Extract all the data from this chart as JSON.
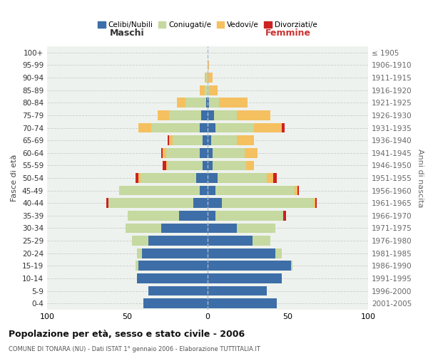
{
  "age_groups": [
    "0-4",
    "5-9",
    "10-14",
    "15-19",
    "20-24",
    "25-29",
    "30-34",
    "35-39",
    "40-44",
    "45-49",
    "50-54",
    "55-59",
    "60-64",
    "65-69",
    "70-74",
    "75-79",
    "80-84",
    "85-89",
    "90-94",
    "95-99",
    "100+"
  ],
  "birth_years": [
    "2001-2005",
    "1996-2000",
    "1991-1995",
    "1986-1990",
    "1981-1985",
    "1976-1980",
    "1971-1975",
    "1966-1970",
    "1961-1965",
    "1956-1960",
    "1951-1955",
    "1946-1950",
    "1941-1945",
    "1936-1940",
    "1931-1935",
    "1926-1930",
    "1921-1925",
    "1916-1920",
    "1911-1915",
    "1906-1910",
    "≤ 1905"
  ],
  "males": {
    "celibi": [
      40,
      37,
      44,
      43,
      41,
      37,
      29,
      18,
      9,
      5,
      7,
      3,
      5,
      3,
      5,
      4,
      1,
      0,
      0,
      0,
      0
    ],
    "coniugati": [
      0,
      0,
      0,
      2,
      3,
      10,
      22,
      32,
      53,
      50,
      35,
      22,
      21,
      19,
      30,
      20,
      13,
      2,
      1,
      0,
      0
    ],
    "vedovi": [
      0,
      0,
      0,
      0,
      0,
      0,
      0,
      0,
      0,
      0,
      1,
      1,
      2,
      2,
      8,
      7,
      5,
      3,
      1,
      0,
      0
    ],
    "divorziati": [
      0,
      0,
      0,
      0,
      0,
      0,
      0,
      0,
      1,
      0,
      2,
      2,
      1,
      1,
      0,
      0,
      0,
      0,
      0,
      0,
      0
    ]
  },
  "females": {
    "nubili": [
      43,
      37,
      46,
      52,
      42,
      28,
      18,
      5,
      9,
      5,
      6,
      3,
      3,
      2,
      5,
      4,
      1,
      0,
      0,
      0,
      0
    ],
    "coniugate": [
      0,
      0,
      0,
      1,
      4,
      11,
      24,
      42,
      57,
      49,
      31,
      21,
      20,
      16,
      24,
      14,
      6,
      1,
      0,
      0,
      0
    ],
    "vedove": [
      0,
      0,
      0,
      0,
      0,
      0,
      0,
      0,
      1,
      2,
      4,
      5,
      8,
      11,
      17,
      21,
      18,
      5,
      3,
      1,
      0
    ],
    "divorziate": [
      0,
      0,
      0,
      0,
      0,
      0,
      0,
      2,
      1,
      1,
      2,
      0,
      0,
      0,
      2,
      0,
      0,
      0,
      0,
      0,
      0
    ]
  },
  "color_celibi": "#3d6ea8",
  "color_coniugati": "#c5d9a0",
  "color_vedovi": "#f5c060",
  "color_divorziati": "#cc2222",
  "xlim": 100,
  "title": "Popolazione per età, sesso e stato civile - 2006",
  "subtitle": "COMUNE DI TONARA (NU) - Dati ISTAT 1° gennaio 2006 - Elaborazione TUTTITALIA.IT",
  "xlabel_left": "Maschi",
  "xlabel_right": "Femmine",
  "ylabel_left": "Fasce di età",
  "ylabel_right": "Anni di nascita",
  "legend_labels": [
    "Celibi/Nubili",
    "Coniugati/e",
    "Vedovi/e",
    "Divorziati/e"
  ],
  "background_color": "#ffffff",
  "plot_bg_color": "#eef2ee",
  "grid_color": "#cccccc"
}
